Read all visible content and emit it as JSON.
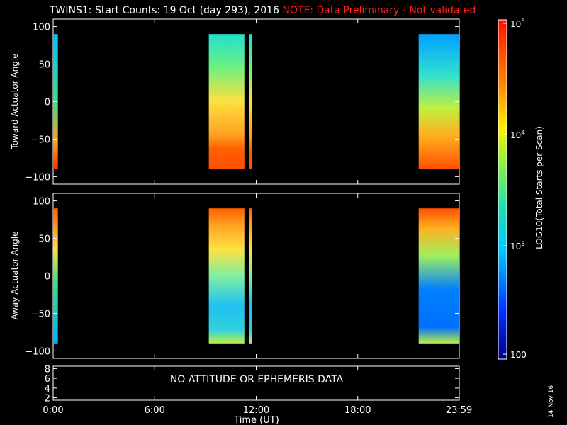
{
  "title": "TWINS1: Start Counts: 19 Oct (day 293), 2016",
  "note": "NOTE: Data Preliminary - Not validated",
  "date_stamp": "14 Nov 16",
  "no_data_message": "NO ATTITUDE OR EPHEMERIS DATA",
  "colorbar": {
    "label": "LOG10(Total Starts per Scan)",
    "ticks": [
      "10^5",
      "10^4",
      "10^3",
      "100"
    ]
  },
  "chart_data": [
    {
      "type": "heatmap",
      "name": "toward",
      "ylabel": "Toward Actuator Angle",
      "ylim": [
        -110,
        110
      ],
      "yticks": [
        100,
        50,
        0,
        -50,
        -100
      ],
      "data_x_ranges_hours": [
        [
          0.0,
          0.28
        ],
        [
          9.2,
          11.3
        ],
        [
          11.6,
          11.75
        ],
        [
          21.6,
          24.0
        ]
      ],
      "data_y_range": [
        -90,
        90
      ]
    },
    {
      "type": "heatmap",
      "name": "away",
      "ylabel": "Away Actuator Angle",
      "ylim": [
        -110,
        110
      ],
      "yticks": [
        100,
        50,
        0,
        -50,
        -100
      ],
      "data_x_ranges_hours": [
        [
          0.0,
          0.28
        ],
        [
          9.2,
          11.3
        ],
        [
          11.6,
          11.75
        ],
        [
          21.6,
          24.0
        ]
      ],
      "data_y_range": [
        -90,
        90
      ]
    },
    {
      "type": "line",
      "name": "attitude",
      "ylim": [
        1.5,
        8.5
      ],
      "yticks": [
        8,
        6,
        4,
        2
      ],
      "xlabel": "Time (UT)",
      "xticks": [
        "0:00",
        "6:00",
        "12:00",
        "18:00",
        "23:59"
      ]
    }
  ]
}
